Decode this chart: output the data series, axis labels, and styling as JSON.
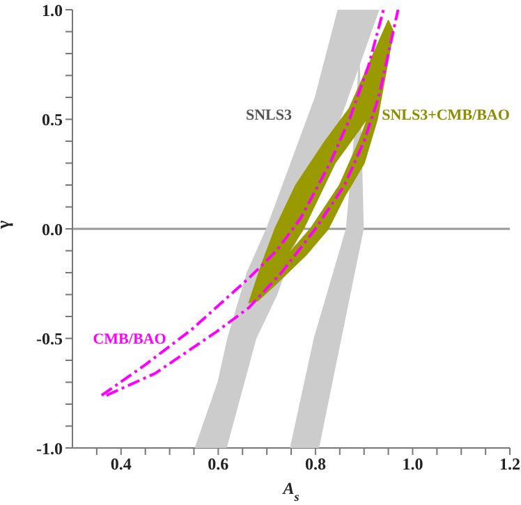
{
  "chart_data": {
    "type": "area",
    "xlabel": "A$_{s}$",
    "ylabel": "γ",
    "xlim": [
      0.3,
      1.2
    ],
    "ylim": [
      -1,
      1
    ],
    "xticks": [
      {
        "value": 0.35,
        "label": null
      },
      0.4,
      {
        "value": 0.45,
        "label": null
      },
      {
        "value": 0.5,
        "label": null
      },
      {
        "value": 0.55,
        "label": null
      },
      0.6,
      {
        "value": 0.65,
        "label": null
      },
      {
        "value": 0.7,
        "label": null
      },
      {
        "value": 0.75,
        "label": null
      },
      0.8,
      {
        "value": 0.85,
        "label": null
      },
      {
        "value": 0.9,
        "label": null
      },
      {
        "value": 0.95,
        "label": null
      },
      {
        "value": 1.0,
        "label": "1.0"
      },
      {
        "value": 1.05,
        "label": null
      },
      {
        "value": 1.1,
        "label": null
      },
      {
        "value": 1.15,
        "label": null
      },
      1.2
    ],
    "yticks": [
      {
        "value": -1,
        "label": "-1.0"
      },
      {
        "value": -0.9,
        "label": null
      },
      {
        "value": -0.8,
        "label": null
      },
      {
        "value": -0.7,
        "label": null
      },
      {
        "value": -0.6,
        "label": null
      },
      {
        "value": -0.5,
        "label": "-0.5"
      },
      {
        "value": -0.4,
        "label": null
      },
      {
        "value": -0.3,
        "label": null
      },
      {
        "value": -0.2,
        "label": null
      },
      {
        "value": -0.1,
        "label": null
      },
      {
        "value": 0,
        "label": "0.0"
      },
      {
        "value": 0.1,
        "label": null
      },
      {
        "value": 0.2,
        "label": null
      },
      {
        "value": 0.3,
        "label": null
      },
      {
        "value": 0.4,
        "label": null
      },
      {
        "value": 0.5,
        "label": "0.5"
      },
      {
        "value": 0.6,
        "label": null
      },
      {
        "value": 0.7,
        "label": null
      },
      {
        "value": 0.8,
        "label": null
      },
      {
        "value": 0.9,
        "label": null
      },
      {
        "value": 1,
        "label": "1.0"
      }
    ],
    "ref_lines": [
      {
        "axis": "y",
        "value": 0,
        "color": "#999999"
      }
    ],
    "series": [
      {
        "color": "#cccccc",
        "x": [
          0.553,
          0.6,
          0.62,
          0.66,
          0.7,
          0.75,
          0.8,
          0.847,
          0.93,
          0.89,
          0.85,
          0.72,
          0.677,
          0.616
        ],
        "values": [
          -1,
          -0.7,
          -0.5,
          -0.2,
          0,
          0.3,
          0.6,
          1,
          1,
          0.75,
          0.5,
          -0.3,
          -0.5,
          -1
        ]
      },
      {
        "color": "#cccccc",
        "x": [
          0.749,
          0.798,
          0.864,
          0.88,
          0.89,
          0.898,
          0.852,
          0.806
        ],
        "values": [
          -1,
          -0.5,
          0,
          0.4,
          0.75,
          0,
          -0.5,
          -1
        ]
      },
      {
        "color": "#999900",
        "x": [
          0.663,
          0.69,
          0.717,
          0.76,
          0.82,
          0.87,
          0.91,
          0.95,
          0.96,
          0.927,
          0.9,
          0.86,
          0.826,
          0.78,
          0.717,
          0.735,
          0.79,
          0.85,
          0.89,
          0.907,
          0.93,
          0.905,
          0.84,
          0.775,
          0.735,
          0.717,
          0.68
        ],
        "values": [
          -0.34,
          -0.16,
          0,
          0.2,
          0.4,
          0.55,
          0.75,
          0.95,
          0.9,
          0.5,
          0.3,
          0.15,
          0,
          -0.12,
          -0.255,
          -0.14,
          0,
          0.2,
          0.4,
          0.5,
          0.8,
          0.5,
          0.3,
          0,
          -0.14,
          -0.255,
          -0.33
        ]
      },
      {
        "type": "line",
        "line_style": "dashed",
        "color": "#ff00ff",
        "x": [
          0.36,
          0.45,
          0.545,
          0.663,
          0.72,
          0.77,
          0.83,
          0.87,
          0.91,
          0.94
        ],
        "values": [
          -0.76,
          -0.62,
          -0.46,
          -0.225,
          -0.1,
          0.05,
          0.3,
          0.5,
          0.75,
          1
        ]
      },
      {
        "type": "line",
        "line_style": "dashed",
        "color": "#ff00ff",
        "x": [
          0.37,
          0.47,
          0.596,
          0.663,
          0.73,
          0.8,
          0.86,
          0.9,
          0.93,
          0.95,
          0.97
        ],
        "values": [
          -0.76,
          -0.66,
          -0.47,
          -0.36,
          -0.2,
          0,
          0.2,
          0.4,
          0.6,
          0.8,
          1
        ]
      }
    ],
    "annotations": [
      "SNLS3",
      "SNLS3+CMB/BAO",
      "CMB/BAO"
    ]
  }
}
